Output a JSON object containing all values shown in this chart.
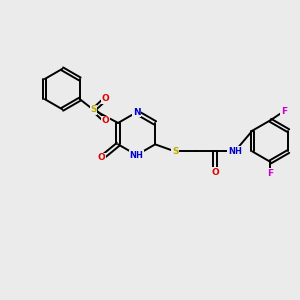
{
  "bg_color": "#ebebeb",
  "bond_color": "#000000",
  "bond_width": 1.4,
  "atom_colors": {
    "N": "#0000cc",
    "O": "#dd0000",
    "S": "#bbaa00",
    "F": "#cc00cc",
    "C": "#000000"
  },
  "font_size": 6.5
}
